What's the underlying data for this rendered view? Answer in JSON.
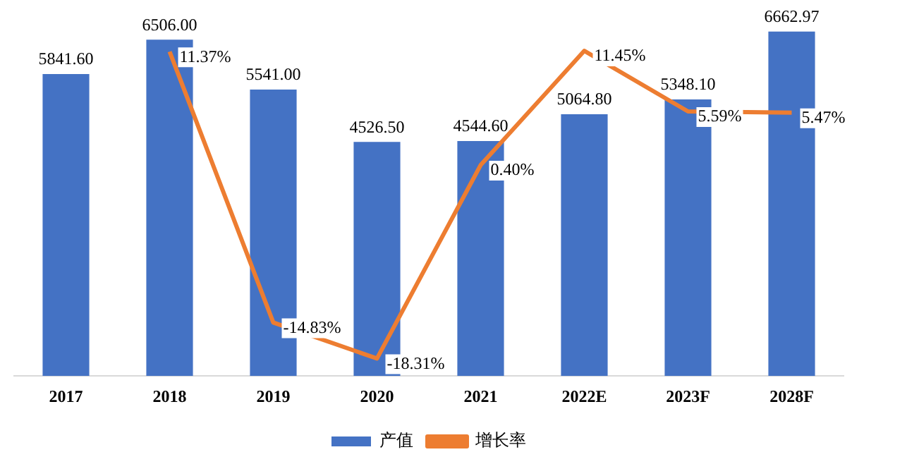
{
  "chart_data": {
    "type": "bar",
    "categories": [
      "2017",
      "2018",
      "2019",
      "2020",
      "2021",
      "2022E",
      "2023F",
      "2028F"
    ],
    "series": [
      {
        "name": "产值",
        "color": "#4472c4",
        "values": [
          5841.6,
          6506.0,
          5541.0,
          4526.5,
          4544.6,
          5064.8,
          5348.1,
          6662.97
        ],
        "value_labels": [
          "5841.60",
          "6506.00",
          "5541.00",
          "4526.50",
          "4544.60",
          "5064.80",
          "5348.10",
          "6662.97"
        ]
      },
      {
        "name": "增长率",
        "type": "line",
        "axis": "y2",
        "color": "#ed7d31",
        "values": [
          null,
          11.37,
          -14.83,
          -18.31,
          0.4,
          11.45,
          5.59,
          5.47
        ],
        "value_labels": [
          null,
          "11.37%",
          "-14.83%",
          "-18.31%",
          "0.40%",
          "11.45%",
          "5.59%",
          "5.47%"
        ]
      }
    ],
    "grid": false,
    "legend": "bottom",
    "tick_labels": "x",
    "marker": "none",
    "line_style": "solid"
  }
}
